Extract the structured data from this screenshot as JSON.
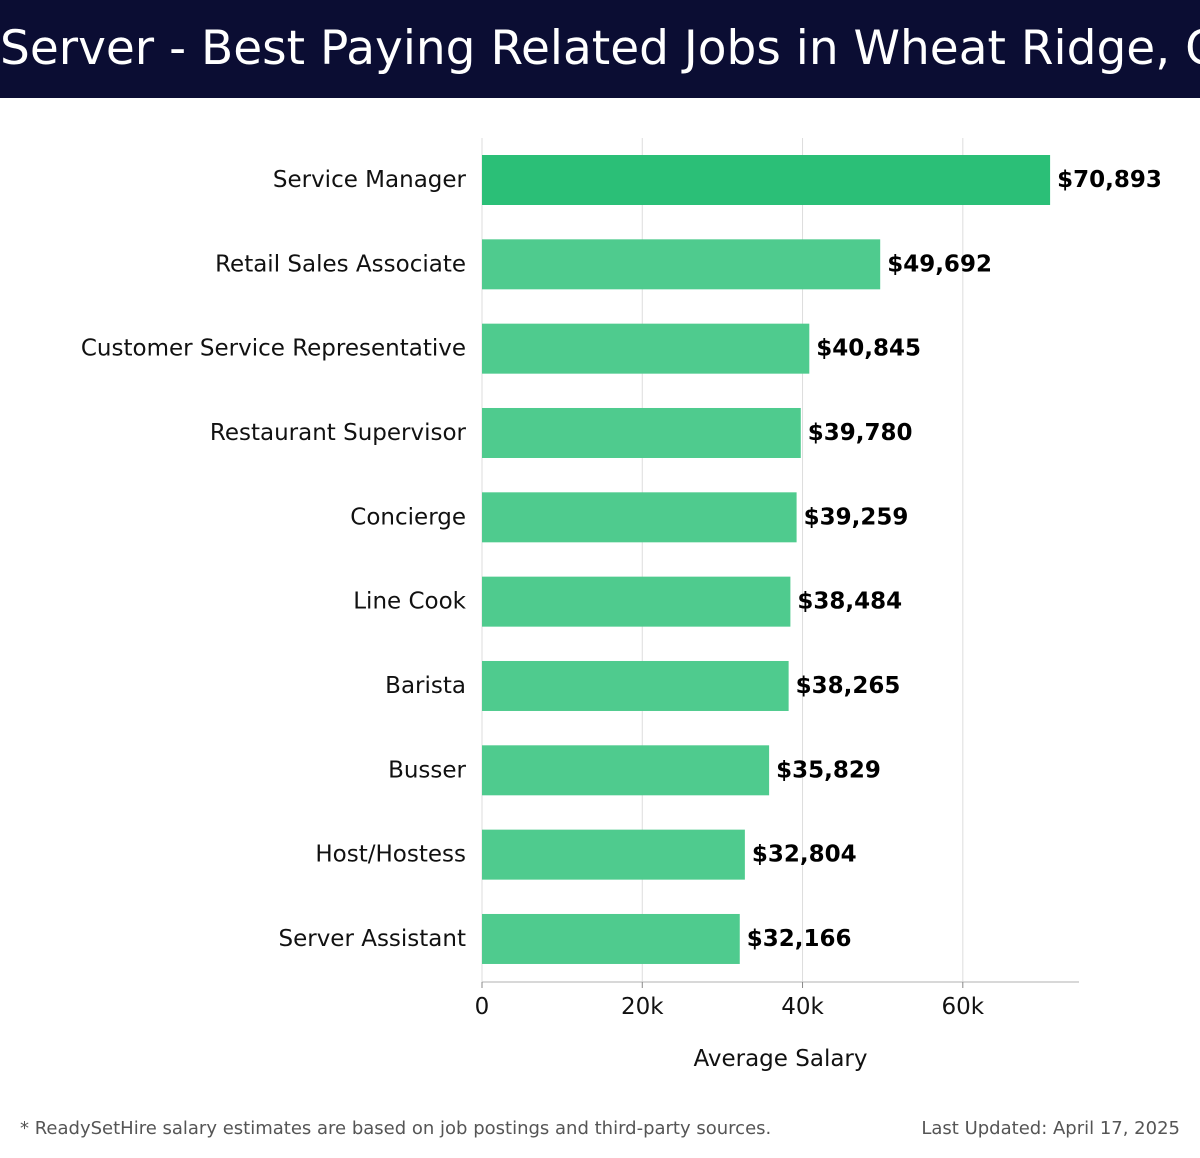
{
  "header": {
    "title": "Server - Best Paying Related Jobs in Wheat Ridge, CO"
  },
  "chart_data": {
    "type": "bar",
    "orientation": "horizontal",
    "categories": [
      "Service Manager",
      "Retail Sales Associate",
      "Customer Service Representative",
      "Restaurant Supervisor",
      "Concierge",
      "Line Cook",
      "Barista",
      "Busser",
      "Host/Hostess",
      "Server Assistant"
    ],
    "values": [
      70893,
      49692,
      40845,
      39780,
      39259,
      38484,
      38265,
      35829,
      32804,
      32166
    ],
    "value_labels": [
      "$70,893",
      "$49,692",
      "$40,845",
      "$39,780",
      "$39,259",
      "$38,484",
      "$38,265",
      "$35,829",
      "$32,804",
      "$32,166"
    ],
    "xlabel": "Average Salary",
    "ylabel": "",
    "xlim": [
      0,
      74500
    ],
    "xticks": [
      0,
      20000,
      40000,
      60000
    ],
    "xtick_labels": [
      "0",
      "20k",
      "40k",
      "60k"
    ],
    "grid": true,
    "legend": "none",
    "colors": {
      "top_bar": "#2bbf77",
      "bar": "#4fcb8e",
      "grid": "#dddddd",
      "axis": "#cccccc"
    }
  },
  "footer": {
    "note": "* ReadySetHire salary estimates are based on job postings and third-party sources.",
    "updated": "Last Updated: April 17, 2025"
  }
}
